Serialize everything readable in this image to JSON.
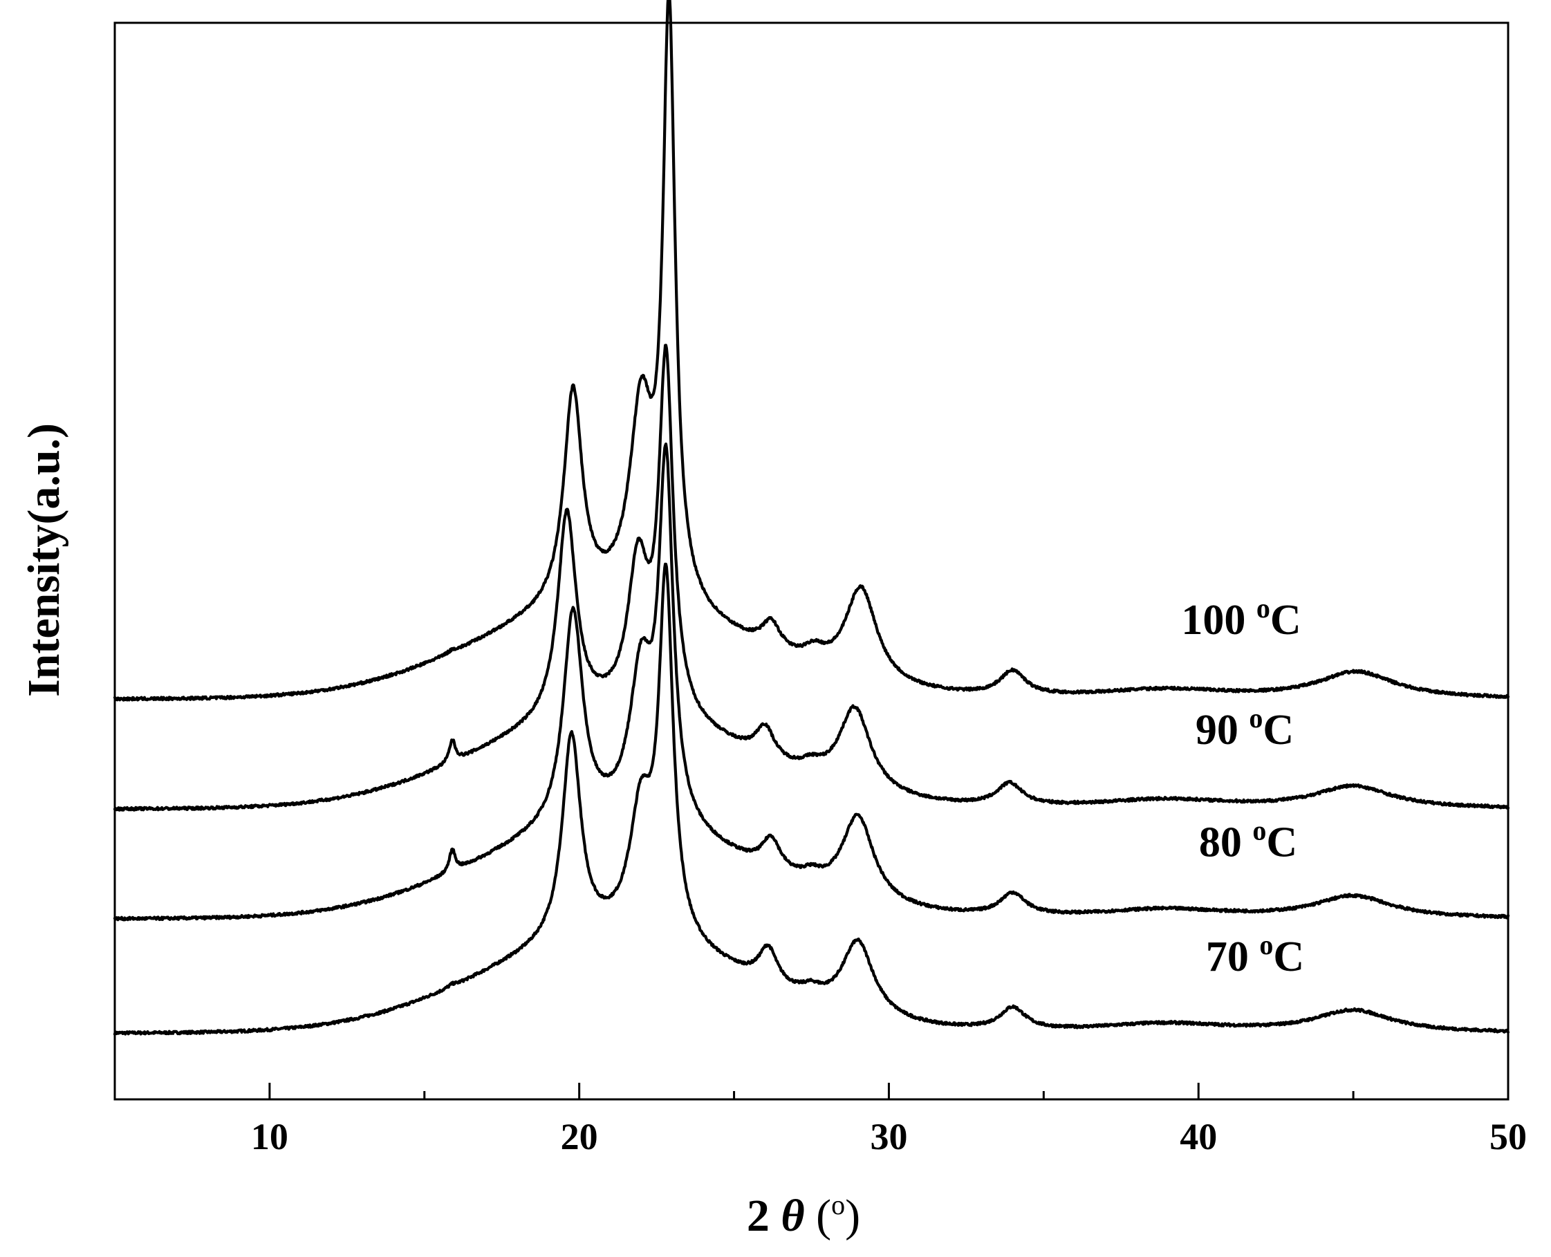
{
  "chart_data": {
    "type": "line",
    "xlabel_parts": {
      "prefix": "2 ",
      "symbol": "θ",
      "open": " (",
      "unit_sup": "o",
      "close": ")"
    },
    "ylabel_parts": {
      "main": "Intensity",
      "unit": "(a.u.)"
    },
    "xlim": [
      5,
      50
    ],
    "x_ticks": [
      10,
      20,
      30,
      40,
      50
    ],
    "x_tick_labels": [
      "10",
      "20",
      "30",
      "40",
      "50"
    ],
    "y_ticks_shown": false,
    "ylim": [
      0,
      4.9
    ],
    "grid": false,
    "legend": "none",
    "line_color": "#000000",
    "series": [
      {
        "name": "70 °C",
        "label_value": "70",
        "label_sup": "o",
        "label_unit": "C",
        "offset": 0.3,
        "peaks": [
          {
            "x": 15.9,
            "h": 0.01,
            "w": 0.15
          },
          {
            "x": 19.75,
            "h": 0.93,
            "w": 0.36
          },
          {
            "x": 22.0,
            "h": 0.55,
            "w": 0.45
          },
          {
            "x": 22.8,
            "h": 1.6,
            "w": 0.28
          },
          {
            "x": 26.1,
            "h": 0.16,
            "w": 0.36
          },
          {
            "x": 27.5,
            "h": 0.04,
            "w": 0.4
          },
          {
            "x": 29.0,
            "h": 0.34,
            "w": 0.62
          },
          {
            "x": 34.0,
            "h": 0.1,
            "w": 0.5
          },
          {
            "x": 38.9,
            "h": 0.04,
            "w": 2.6
          },
          {
            "x": 45.0,
            "h": 0.1,
            "w": 1.5
          }
        ]
      },
      {
        "name": "80 °C",
        "label_value": "80",
        "label_sup": "o",
        "label_unit": "C",
        "offset": 0.82,
        "peaks": [
          {
            "x": 15.9,
            "h": 0.1,
            "w": 0.12
          },
          {
            "x": 19.8,
            "h": 0.97,
            "w": 0.38
          },
          {
            "x": 22.0,
            "h": 0.65,
            "w": 0.45
          },
          {
            "x": 22.8,
            "h": 1.6,
            "w": 0.28
          },
          {
            "x": 26.2,
            "h": 0.14,
            "w": 0.36
          },
          {
            "x": 27.5,
            "h": 0.04,
            "w": 0.4
          },
          {
            "x": 29.0,
            "h": 0.39,
            "w": 0.62
          },
          {
            "x": 34.0,
            "h": 0.1,
            "w": 0.5
          },
          {
            "x": 38.9,
            "h": 0.04,
            "w": 2.6
          },
          {
            "x": 45.0,
            "h": 0.1,
            "w": 1.5
          }
        ]
      },
      {
        "name": "90 °C",
        "label_value": "90",
        "label_sup": "o",
        "label_unit": "C",
        "offset": 1.32,
        "peaks": [
          {
            "x": 15.9,
            "h": 0.1,
            "w": 0.12
          },
          {
            "x": 19.6,
            "h": 0.93,
            "w": 0.36
          },
          {
            "x": 21.9,
            "h": 0.65,
            "w": 0.4
          },
          {
            "x": 22.8,
            "h": 1.6,
            "w": 0.28
          },
          {
            "x": 26.0,
            "h": 0.14,
            "w": 0.36
          },
          {
            "x": 27.5,
            "h": 0.04,
            "w": 0.4
          },
          {
            "x": 28.9,
            "h": 0.38,
            "w": 0.62
          },
          {
            "x": 33.9,
            "h": 0.1,
            "w": 0.5
          },
          {
            "x": 38.9,
            "h": 0.04,
            "w": 2.6
          },
          {
            "x": 45.0,
            "h": 0.1,
            "w": 1.5
          }
        ]
      },
      {
        "name": "100 °C",
        "label_value": "100",
        "label_sup": "o",
        "label_unit": "C",
        "offset": 1.82,
        "peaks": [
          {
            "x": 15.9,
            "h": 0.01,
            "w": 0.15
          },
          {
            "x": 19.8,
            "h": 0.97,
            "w": 0.36
          },
          {
            "x": 22.0,
            "h": 0.85,
            "w": 0.45
          },
          {
            "x": 22.9,
            "h": 2.65,
            "w": 0.24
          },
          {
            "x": 26.2,
            "h": 0.12,
            "w": 0.36
          },
          {
            "x": 27.6,
            "h": 0.06,
            "w": 0.4
          },
          {
            "x": 29.1,
            "h": 0.43,
            "w": 0.62
          },
          {
            "x": 34.0,
            "h": 0.11,
            "w": 0.5
          },
          {
            "x": 38.9,
            "h": 0.04,
            "w": 2.6
          },
          {
            "x": 45.1,
            "h": 0.12,
            "w": 1.5
          }
        ]
      }
    ]
  }
}
